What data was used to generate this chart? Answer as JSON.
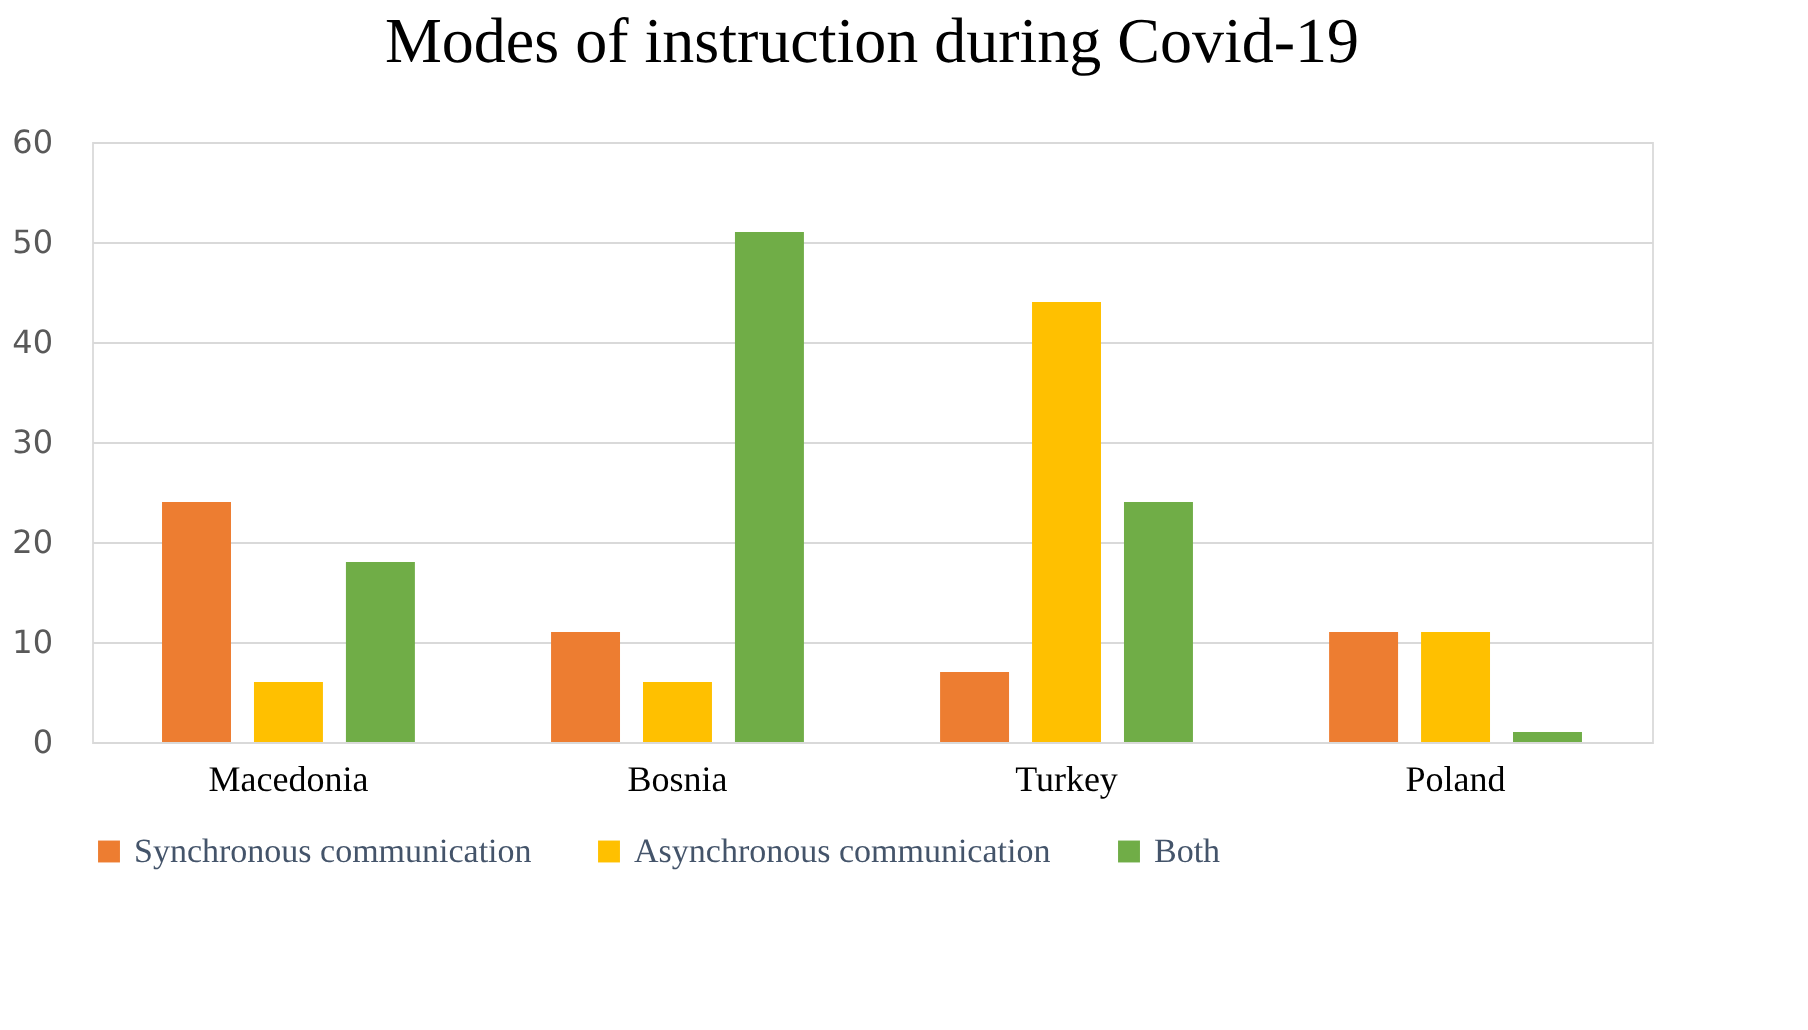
{
  "chart_data": {
    "type": "bar",
    "title": "Modes of instruction during Covid-19",
    "categories": [
      "Macedonia",
      "Bosnia",
      "Turkey",
      "Poland"
    ],
    "series": [
      {
        "name": "Synchronous communication",
        "color": "#ed7d31",
        "values": [
          24,
          11,
          7,
          11
        ]
      },
      {
        "name": "Asynchronous communication",
        "color": "#ffc000",
        "values": [
          6,
          6,
          44,
          11
        ]
      },
      {
        "name": "Both",
        "color": "#70ad47",
        "values": [
          18,
          51,
          24,
          1
        ]
      }
    ],
    "ylim": [
      0,
      60
    ],
    "yticks": [
      0,
      10,
      20,
      30,
      40,
      50,
      60
    ],
    "grid": "y",
    "legend": "bottom"
  }
}
